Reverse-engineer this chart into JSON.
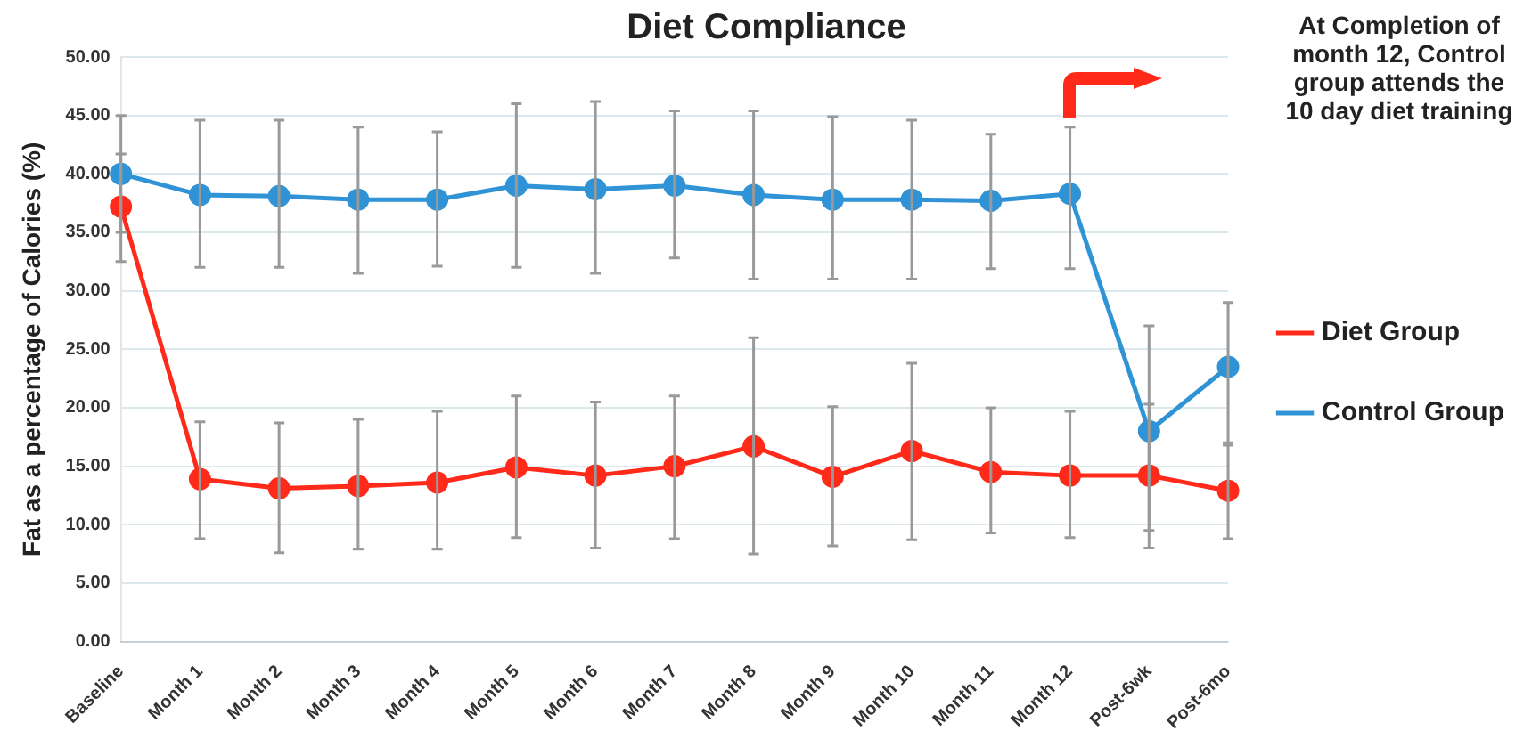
{
  "chart_data": {
    "type": "line",
    "title": "Diet Compliance",
    "ylabel": "Fat as a percentage of Calories (%)",
    "categories": [
      "Baseline",
      "Month 1",
      "Month 2",
      "Month 3",
      "Month 4",
      "Month 5",
      "Month 6",
      "Month 7",
      "Month 8",
      "Month 9",
      "Month 10",
      "Month 11",
      "Month 12",
      "Post-6wk",
      "Post-6mo"
    ],
    "series": [
      {
        "name": "Diet Group",
        "color": "#ff2a1a",
        "values": [
          37.2,
          13.9,
          13.1,
          13.3,
          13.6,
          14.9,
          14.2,
          15,
          16.7,
          14.1,
          16.3,
          14.5,
          14.2,
          14.2,
          12.9
        ],
        "errors": [
          [
            32.5,
            41.7
          ],
          [
            8.8,
            18.8
          ],
          [
            7.6,
            18.7
          ],
          [
            7.9,
            19
          ],
          [
            7.9,
            19.7
          ],
          [
            8.9,
            21
          ],
          [
            8,
            20.5
          ],
          [
            8.8,
            21
          ],
          [
            7.5,
            26
          ],
          [
            8.2,
            20.1
          ],
          [
            8.7,
            23.8
          ],
          [
            9.3,
            20
          ],
          [
            8.9,
            19.7
          ],
          [
            8,
            20.3
          ],
          [
            8.8,
            17
          ]
        ]
      },
      {
        "name": "Control Group",
        "color": "#2f93d6",
        "values": [
          40,
          38.2,
          38.1,
          37.8,
          37.8,
          39,
          38.7,
          39,
          38.2,
          37.8,
          37.8,
          37.7,
          38.3,
          18,
          23.5
        ],
        "errors": [
          [
            35,
            45
          ],
          [
            32,
            44.6
          ],
          [
            32,
            44.6
          ],
          [
            31.5,
            44
          ],
          [
            32.1,
            43.6
          ],
          [
            32,
            46
          ],
          [
            31.5,
            46.2
          ],
          [
            32.8,
            45.4
          ],
          [
            31,
            45.4
          ],
          [
            31,
            44.9
          ],
          [
            31,
            44.6
          ],
          [
            31.9,
            43.4
          ],
          [
            31.9,
            44
          ],
          [
            9.5,
            27
          ],
          [
            16.8,
            29
          ]
        ]
      }
    ],
    "ylim": [
      0,
      50
    ],
    "yticks": [
      {
        "value": 0,
        "label": "0.00"
      },
      {
        "value": 5,
        "label": "5.00"
      },
      {
        "value": 10,
        "label": "10.00"
      },
      {
        "value": 15,
        "label": "15.00"
      },
      {
        "value": 20,
        "label": "20.00"
      },
      {
        "value": 25,
        "label": "25.00"
      },
      {
        "value": 30,
        "label": "30.00"
      },
      {
        "value": 35,
        "label": "35.00"
      },
      {
        "value": 40,
        "label": "40.00"
      },
      {
        "value": 45,
        "label": "45.00"
      },
      {
        "value": 50,
        "label": "50.00"
      }
    ],
    "grid": "y",
    "legend": "right",
    "marker": "circle",
    "line_style": "solid",
    "annotations": [
      "At Completion of month 12, Control group attends the 10 day diet training"
    ]
  }
}
